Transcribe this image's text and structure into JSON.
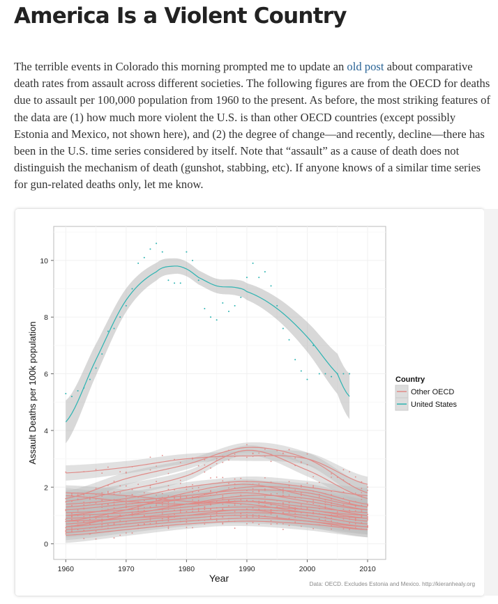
{
  "title": "America Is a Violent Country",
  "intro": {
    "before_link": "The terrible events in Colorado this morning prompted me to update an ",
    "link": "old post",
    "after_link": " about comparative death rates from assault across different societies. The following figures are from the OECD for deaths due to assault per 100,000 population from 1960 to the present. As before, the most striking features of the data are (1) how much more violent the U.S. is than other OECD countries (except possibly Estonia and Mexico, not shown here), and (2) the degree of change—and recently, decline—there has been in the U.S. time series considered by itself. Note that “assault” as a cause of death does not distinguish the mechanism of death (gunshot, stabbing, etc). If anyone knows of a similar time series for gun-related deaths only, let me know."
  },
  "chart_data": {
    "type": "scatter",
    "xlabel": "Year",
    "ylabel": "Assault Deaths per 100k population",
    "caption": "Data: OECD. Excludes Estonia and Mexico. http://kieranhealy.org",
    "xlim": [
      1958,
      2013
    ],
    "ylim": [
      -0.55,
      11.2
    ],
    "xticks": [
      1960,
      1970,
      1980,
      1990,
      2000,
      2010
    ],
    "yticks": [
      0,
      2,
      4,
      6,
      8,
      10
    ],
    "grid": true,
    "legend": {
      "title": "Country",
      "placement": "right",
      "entries": [
        {
          "label": "Other OECD",
          "color": "#e08a87"
        },
        {
          "label": "United States",
          "color": "#2bb3b1"
        }
      ]
    },
    "us_points": {
      "x": [
        1960,
        1961,
        1962,
        1963,
        1964,
        1965,
        1966,
        1967,
        1968,
        1969,
        1970,
        1971,
        1972,
        1973,
        1974,
        1975,
        1976,
        1977,
        1978,
        1979,
        1980,
        1981,
        1982,
        1983,
        1984,
        1985,
        1986,
        1987,
        1988,
        1989,
        1990,
        1991,
        1992,
        1993,
        1994,
        1995,
        1996,
        1997,
        1998,
        1999,
        2000,
        2001,
        2002,
        2003,
        2004,
        2005,
        2006,
        2007
      ],
      "y": [
        5.3,
        5.2,
        5.4,
        5.5,
        5.8,
        6.2,
        6.7,
        7.5,
        7.6,
        8.0,
        8.4,
        9.0,
        9.9,
        10.1,
        10.4,
        10.6,
        10.3,
        9.3,
        9.2,
        9.2,
        10.3,
        10.0,
        9.3,
        8.3,
        8.0,
        7.9,
        8.5,
        8.2,
        8.4,
        8.7,
        9.4,
        9.9,
        9.4,
        9.6,
        9.1,
        8.4,
        7.6,
        7.2,
        6.5,
        6.1,
        5.8,
        7.0,
        6.0,
        6.0,
        5.9,
        6.0,
        6.0,
        6.0
      ]
    },
    "us_smooth": {
      "x": [
        1960,
        1965,
        1970,
        1975,
        1978,
        1980,
        1982,
        1985,
        1988,
        1990,
        1995,
        2000,
        2005,
        2007
      ],
      "y": [
        4.3,
        6.5,
        8.6,
        9.6,
        9.8,
        9.7,
        9.4,
        9.1,
        9.05,
        8.9,
        8.3,
        7.3,
        6.0,
        5.2
      ]
    },
    "other_series_smooth_x": [
      1960,
      1970,
      1980,
      1990,
      2000,
      2010
    ],
    "other_series": [
      [
        2.5,
        2.7,
        3.0,
        3.1,
        3.0,
        2.1
      ],
      [
        1.6,
        2.3,
        2.8,
        3.4,
        3.0,
        1.8
      ],
      [
        1.5,
        1.9,
        2.4,
        3.3,
        2.6,
        1.6
      ],
      [
        1.4,
        1.6,
        2.0,
        2.2,
        2.0,
        1.7
      ],
      [
        1.3,
        1.5,
        1.7,
        1.9,
        1.8,
        1.3
      ],
      [
        1.2,
        1.4,
        1.6,
        1.8,
        1.5,
        1.2
      ],
      [
        1.1,
        1.2,
        1.4,
        1.6,
        1.4,
        1.0
      ],
      [
        1.0,
        1.1,
        1.3,
        1.5,
        1.3,
        1.1
      ],
      [
        0.9,
        1.0,
        1.2,
        1.3,
        1.2,
        0.9
      ],
      [
        0.8,
        0.9,
        1.1,
        1.2,
        1.1,
        0.8
      ],
      [
        0.7,
        0.9,
        1.0,
        1.1,
        1.0,
        0.7
      ],
      [
        0.6,
        0.8,
        1.0,
        1.2,
        0.9,
        0.6
      ],
      [
        0.5,
        0.7,
        0.9,
        1.0,
        0.8,
        0.6
      ],
      [
        0.4,
        0.6,
        0.8,
        0.9,
        0.8,
        0.5
      ],
      [
        0.3,
        0.5,
        0.7,
        0.8,
        0.7,
        0.5
      ],
      [
        1.7,
        1.5,
        1.4,
        1.5,
        1.2,
        1.0
      ],
      [
        1.8,
        1.7,
        1.5,
        1.4,
        1.1,
        0.9
      ],
      [
        0.6,
        1.0,
        1.4,
        1.7,
        1.6,
        1.2
      ],
      [
        1.0,
        1.3,
        1.6,
        2.0,
        1.9,
        1.4
      ],
      [
        0.8,
        1.2,
        1.8,
        2.1,
        1.7,
        1.3
      ]
    ]
  }
}
